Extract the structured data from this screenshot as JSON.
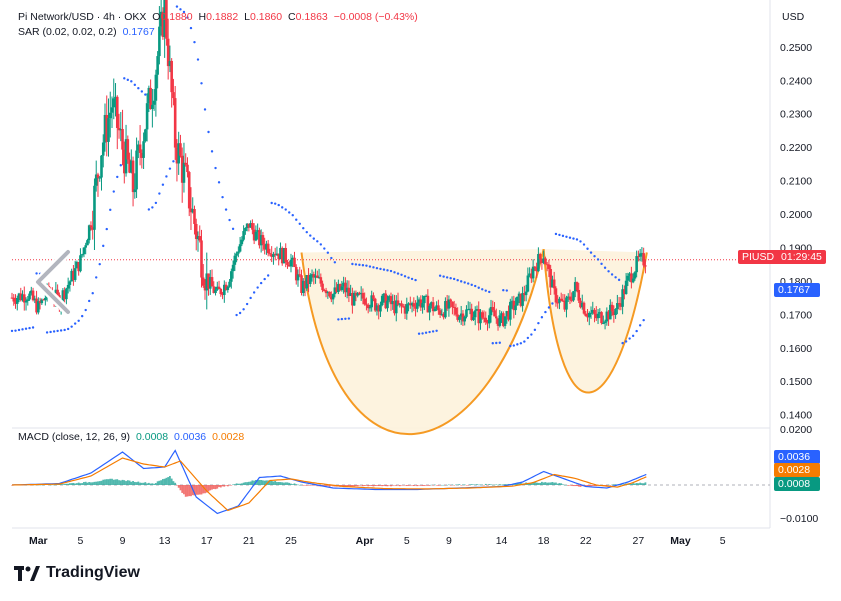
{
  "header": {
    "symbol": "Pi Network/USD · 4h · OKX",
    "ohlc": {
      "o_label": "O",
      "o_value": "0.1880",
      "h_label": "H",
      "h_value": "0.1882",
      "l_label": "L",
      "l_value": "0.1860",
      "c_label": "C",
      "c_value": "0.1863",
      "change": "−0.0008 (−0.43%)"
    },
    "sar_label": "SAR (0.02, 0.02, 0.2)",
    "sar_value": "0.1767",
    "macd_label": "MACD (close, 12, 26, 9)",
    "macd_values": [
      "0.0008",
      "0.0036",
      "0.0028"
    ],
    "currency": "USD"
  },
  "price_tags": {
    "symbol_tag": "PIUSD",
    "countdown": "01:29:45",
    "sar_tag": "0.1767",
    "macd_tags": [
      "0.0036",
      "0.0028",
      "0.0008"
    ]
  },
  "colors": {
    "up": "#089981",
    "down": "#f23645",
    "sar": "#2962ff",
    "cup": "#f59a23",
    "cup_fill": "#fdf2dc",
    "macd_line": "#2962ff",
    "signal_line": "#f57c00",
    "hist_up": "#26a69a",
    "hist_down": "#ef5350"
  },
  "chart_data": {
    "type": "candlestick",
    "timeframe": "4h",
    "y_ticks": [
      0.25,
      0.24,
      0.23,
      0.22,
      0.21,
      0.2,
      0.19,
      0.18,
      0.17,
      0.16,
      0.15,
      0.14
    ],
    "y_tick_labels": [
      "0.2500",
      "0.2400",
      "0.2300",
      "0.2200",
      "0.2100",
      "0.2000",
      "0.1900",
      "0.1800",
      "0.1700",
      "0.1600",
      "0.1500",
      "0.1400"
    ],
    "ylim": [
      0.136,
      0.264
    ],
    "x_ticks": [
      {
        "label": "Mar",
        "day": 0,
        "bold": true
      },
      {
        "label": "5",
        "day": 4
      },
      {
        "label": "9",
        "day": 8
      },
      {
        "label": "13",
        "day": 12
      },
      {
        "label": "17",
        "day": 16
      },
      {
        "label": "21",
        "day": 20
      },
      {
        "label": "25",
        "day": 24
      },
      {
        "label": "Apr",
        "day": 31,
        "bold": true
      },
      {
        "label": "5",
        "day": 35
      },
      {
        "label": "9",
        "day": 39
      },
      {
        "label": "14",
        "day": 44
      },
      {
        "label": "18",
        "day": 48
      },
      {
        "label": "22",
        "day": 52
      },
      {
        "label": "27",
        "day": 57
      },
      {
        "label": "May",
        "day": 61,
        "bold": true
      },
      {
        "label": "5",
        "day": 65
      }
    ],
    "xlim_days": [
      -2.5,
      69.5
    ],
    "price_path": [
      [
        -2.5,
        0.175
      ],
      [
        -1,
        0.176
      ],
      [
        0,
        0.172
      ],
      [
        1,
        0.177
      ],
      [
        2,
        0.174
      ],
      [
        3,
        0.18
      ],
      [
        4,
        0.186
      ],
      [
        5,
        0.198
      ],
      [
        6,
        0.22
      ],
      [
        7,
        0.233
      ],
      [
        8,
        0.22
      ],
      [
        9,
        0.208
      ],
      [
        10,
        0.225
      ],
      [
        11,
        0.24
      ],
      [
        12,
        0.262
      ],
      [
        13,
        0.222
      ],
      [
        14,
        0.21
      ],
      [
        15,
        0.195
      ],
      [
        16,
        0.18
      ],
      [
        17,
        0.176
      ],
      [
        18,
        0.18
      ],
      [
        19,
        0.19
      ],
      [
        20,
        0.197
      ],
      [
        21,
        0.192
      ],
      [
        22,
        0.19
      ],
      [
        23,
        0.188
      ],
      [
        24,
        0.186
      ],
      [
        25,
        0.178
      ],
      [
        26,
        0.181
      ],
      [
        27,
        0.179
      ],
      [
        28,
        0.176
      ],
      [
        29,
        0.178
      ],
      [
        30,
        0.174
      ],
      [
        31,
        0.175
      ],
      [
        32,
        0.173
      ],
      [
        33,
        0.174
      ],
      [
        34,
        0.172
      ],
      [
        35,
        0.172
      ],
      [
        36,
        0.174
      ],
      [
        37,
        0.173
      ],
      [
        38,
        0.171
      ],
      [
        39,
        0.172
      ],
      [
        40,
        0.17
      ],
      [
        41,
        0.171
      ],
      [
        42,
        0.169
      ],
      [
        43,
        0.17
      ],
      [
        44,
        0.168
      ],
      [
        45,
        0.172
      ],
      [
        46,
        0.175
      ],
      [
        47,
        0.184
      ],
      [
        48,
        0.188
      ],
      [
        49,
        0.176
      ],
      [
        50,
        0.172
      ],
      [
        51,
        0.178
      ],
      [
        52,
        0.171
      ],
      [
        53,
        0.169
      ],
      [
        54,
        0.17
      ],
      [
        55,
        0.172
      ],
      [
        56,
        0.18
      ],
      [
        57,
        0.186
      ],
      [
        57.8,
        0.1863
      ]
    ],
    "last_price": 0.1863,
    "sar_current": 0.1767,
    "cup_and_handle": {
      "rim_left": [
        25,
        0.1885
      ],
      "cup_bottom": [
        35.3,
        0.141
      ],
      "rim_right": [
        48,
        0.1895
      ],
      "handle_bottom": [
        52.5,
        0.15
      ],
      "handle_end": [
        57.8,
        0.1885
      ]
    },
    "macd": {
      "y_ticks": [
        0.02,
        -0.01
      ],
      "y_tick_labels": [
        "0.0200",
        "−0.0100"
      ],
      "macd_line": [
        [
          -2.5,
          0.0
        ],
        [
          2,
          0.0005
        ],
        [
          5,
          0.004
        ],
        [
          8,
          0.011
        ],
        [
          10,
          0.0055
        ],
        [
          12,
          0.006
        ],
        [
          13,
          0.0115
        ],
        [
          15,
          -0.004
        ],
        [
          17,
          -0.0095
        ],
        [
          19,
          -0.007
        ],
        [
          21,
          0.0025
        ],
        [
          23,
          0.003
        ],
        [
          25,
          0.001
        ],
        [
          28,
          -0.001
        ],
        [
          32,
          -0.0015
        ],
        [
          36,
          -0.0015
        ],
        [
          40,
          -0.001
        ],
        [
          44,
          -0.0005
        ],
        [
          46,
          0.001
        ],
        [
          48,
          0.0045
        ],
        [
          50,
          0.002
        ],
        [
          52,
          -0.0005
        ],
        [
          54,
          -0.001
        ],
        [
          56,
          0.001
        ],
        [
          57.8,
          0.0036
        ]
      ],
      "signal_line": [
        [
          -2.5,
          0.0
        ],
        [
          2,
          0.0003
        ],
        [
          5,
          0.003
        ],
        [
          8,
          0.009
        ],
        [
          10,
          0.007
        ],
        [
          12,
          0.006
        ],
        [
          13.5,
          0.008
        ],
        [
          16,
          -0.002
        ],
        [
          18,
          -0.0085
        ],
        [
          20,
          -0.006
        ],
        [
          22,
          0.0015
        ],
        [
          24,
          0.002
        ],
        [
          26,
          0.0008
        ],
        [
          29,
          -0.0005
        ],
        [
          33,
          -0.0012
        ],
        [
          37,
          -0.0013
        ],
        [
          41,
          -0.001
        ],
        [
          45,
          -0.0004
        ],
        [
          47,
          0.0008
        ],
        [
          49,
          0.0035
        ],
        [
          51,
          0.0022
        ],
        [
          53,
          0.0
        ],
        [
          55,
          -0.0007
        ],
        [
          56.5,
          0.0008
        ],
        [
          57.8,
          0.0028
        ]
      ],
      "histogram": [
        [
          -2.5,
          0.0
        ],
        [
          2,
          0.0003
        ],
        [
          5,
          0.001
        ],
        [
          7,
          0.002
        ],
        [
          9,
          0.0012
        ],
        [
          11,
          0.0005
        ],
        [
          12.5,
          0.003
        ],
        [
          14,
          -0.004
        ],
        [
          15.5,
          -0.003
        ],
        [
          17,
          -0.001
        ],
        [
          19,
          0.0005
        ],
        [
          21,
          0.0018
        ],
        [
          23,
          0.001
        ],
        [
          25,
          0.0
        ],
        [
          28,
          -0.0005
        ],
        [
          32,
          -0.0003
        ],
        [
          36,
          -0.0002
        ],
        [
          40,
          0.0001
        ],
        [
          44,
          0.0002
        ],
        [
          47,
          0.0009
        ],
        [
          49,
          0.0008
        ],
        [
          51,
          -0.0005
        ],
        [
          53,
          -0.0004
        ],
        [
          55,
          0.0002
        ],
        [
          57.8,
          0.0008
        ]
      ]
    }
  },
  "brand": "TradingView"
}
